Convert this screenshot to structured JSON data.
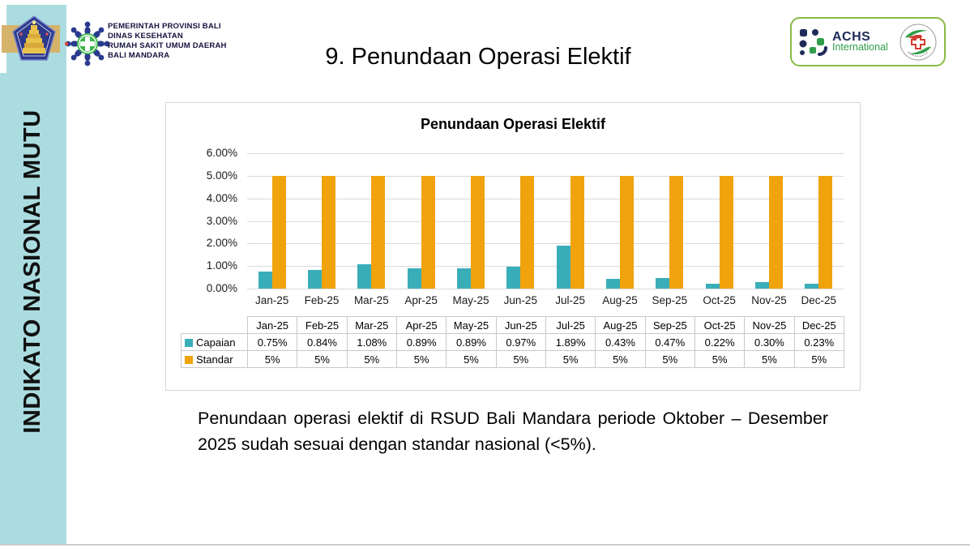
{
  "sidebar": {
    "vertical_label": "INDIKATO NASIONAL MUTU"
  },
  "header": {
    "org_lines": [
      "PEMERINTAH PROVINSI BALI",
      "DINAS KESEHATAN",
      "RUMAH SAKIT UMUM DAERAH",
      "BALI MANDARA"
    ],
    "title": "9. Penundaan Operasi Elektif",
    "logos": {
      "achs_name": "ACHS",
      "achs_subtitle": "International"
    }
  },
  "chart_data": {
    "type": "bar",
    "title": "Penundaan Operasi Elektif",
    "categories": [
      "Jan-25",
      "Feb-25",
      "Mar-25",
      "Apr-25",
      "May-25",
      "Jun-25",
      "Jul-25",
      "Aug-25",
      "Sep-25",
      "Oct-25",
      "Nov-25",
      "Dec-25"
    ],
    "series": [
      {
        "name": "Capaian",
        "color": "#3aaeb8",
        "values": [
          0.75,
          0.84,
          1.08,
          0.89,
          0.89,
          0.97,
          1.89,
          0.43,
          0.47,
          0.22,
          0.3,
          0.23
        ],
        "labels": [
          "0.75%",
          "0.84%",
          "1.08%",
          "0.89%",
          "0.89%",
          "0.97%",
          "1.89%",
          "0.43%",
          "0.47%",
          "0.22%",
          "0.30%",
          "0.23%"
        ]
      },
      {
        "name": "Standar",
        "color": "#f0a30c",
        "values": [
          5,
          5,
          5,
          5,
          5,
          5,
          5,
          5,
          5,
          5,
          5,
          5
        ],
        "labels": [
          "5%",
          "5%",
          "5%",
          "5%",
          "5%",
          "5%",
          "5%",
          "5%",
          "5%",
          "5%",
          "5%",
          " 5%"
        ]
      }
    ],
    "ylim": [
      0,
      6
    ],
    "yticks": [
      "6.00%",
      "5.00%",
      "4.00%",
      "3.00%",
      "2.00%",
      "1.00%",
      "0.00%"
    ],
    "grid": true,
    "legend_position": "table-rows-left"
  },
  "summary": {
    "text": "Penundaan operasi elektif di RSUD Bali Mandara periode Oktober – Desember 2025 sudah sesuai dengan standar nasional (<5%)."
  },
  "colors": {
    "accent_teal": "#3aaeb8",
    "accent_orange": "#f0a30c",
    "sidebar_strip": "#abdce0",
    "tan_band": "#d5b36a",
    "logo_box_border": "#86bc42"
  }
}
